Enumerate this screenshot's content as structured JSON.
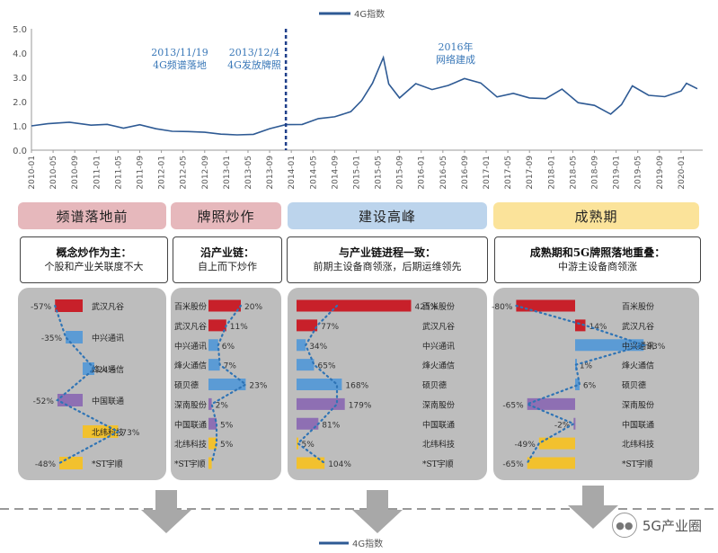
{
  "chart_data": [
    {
      "type": "line",
      "legend": "4G指数",
      "ylim": [
        0,
        5
      ],
      "yticks": [
        "0.0",
        "1.0",
        "2.0",
        "3.0",
        "4.0",
        "5.0"
      ],
      "xticks": [
        "2010-01",
        "2010-05",
        "2010-09",
        "2011-01",
        "2011-05",
        "2011-09",
        "2012-01",
        "2012-05",
        "2012-09",
        "2013-01",
        "2013-05",
        "2013-09",
        "2014-01",
        "2014-05",
        "2014-09",
        "2015-01",
        "2015-05",
        "2015-09",
        "2016-01",
        "2016-05",
        "2016-09",
        "2017-01",
        "2017-05",
        "2017-09",
        "2018-01",
        "2018-05",
        "2018-09",
        "2019-01",
        "2019-05",
        "2019-09",
        "2020-01"
      ],
      "series": [
        {
          "name": "4G指数",
          "x": [
            "2010-01",
            "2010-04",
            "2010-08",
            "2010-12",
            "2011-03",
            "2011-06",
            "2011-09",
            "2011-12",
            "2012-03",
            "2012-06",
            "2012-09",
            "2012-12",
            "2013-03",
            "2013-06",
            "2013-09",
            "2013-12",
            "2014-03",
            "2014-06",
            "2014-09",
            "2014-12",
            "2015-02",
            "2015-04",
            "2015-06",
            "2015-07",
            "2015-09",
            "2015-12",
            "2016-03",
            "2016-06",
            "2016-09",
            "2016-12",
            "2017-03",
            "2017-06",
            "2017-09",
            "2017-12",
            "2018-03",
            "2018-06",
            "2018-09",
            "2018-12",
            "2019-02",
            "2019-04",
            "2019-07",
            "2019-10",
            "2020-01",
            "2020-02",
            "2020-04"
          ],
          "values": [
            1.0,
            1.05,
            1.2,
            1.0,
            1.05,
            0.95,
            1.0,
            0.9,
            0.8,
            0.72,
            0.78,
            0.65,
            0.6,
            0.7,
            0.85,
            1.05,
            1.1,
            1.25,
            1.4,
            1.6,
            2.0,
            2.8,
            3.8,
            2.7,
            2.2,
            2.7,
            2.5,
            2.7,
            2.9,
            2.8,
            2.2,
            2.3,
            2.2,
            2.1,
            2.5,
            2.0,
            1.8,
            1.5,
            1.9,
            2.6,
            2.3,
            2.2,
            2.4,
            2.8,
            2.5
          ]
        }
      ],
      "annotations": [
        {
          "date": "2013-11",
          "lines": [
            "2013/11/19",
            "4G频谱落地"
          ]
        },
        {
          "date": "2013-12",
          "lines": [
            "2013/12/4",
            "4G发放牌照"
          ]
        },
        {
          "date": "2016-04",
          "lines": [
            "2016年",
            "网络建成"
          ]
        }
      ]
    },
    {
      "type": "bar",
      "panel": "频谱落地前",
      "categories": [
        "武汉凡谷",
        "中兴通讯",
        "烽火通信",
        "中国联通",
        "北纬科技",
        "*ST宇顺"
      ],
      "values": [
        -57,
        -35,
        24,
        -52,
        73,
        -48
      ],
      "labels": [
        "-57%",
        "-35%",
        "24%",
        "-52%",
        "73%",
        "-48%"
      ]
    },
    {
      "type": "bar",
      "panel": "牌照炒作",
      "categories": [
        "百米股份",
        "武汉凡谷",
        "中兴通讯",
        "烽火通信",
        "硕贝德",
        "深南股份",
        "中国联通",
        "北纬科技",
        "*ST宇顺"
      ],
      "values": [
        20,
        11,
        6,
        7,
        23,
        2,
        5,
        5,
        2
      ],
      "labels": [
        "20%",
        "11%",
        "6%",
        "7%",
        "23%",
        "2%",
        "5%",
        "5%",
        ""
      ]
    },
    {
      "type": "bar",
      "panel": "建设高峰",
      "categories": [
        "百米股份",
        "武汉凡谷",
        "中兴通讯",
        "烽火通信",
        "硕贝德",
        "深南股份",
        "中国联通",
        "北纬科技",
        "*ST宇顺"
      ],
      "values": [
        425,
        77,
        34,
        65,
        168,
        179,
        81,
        5,
        104
      ],
      "labels": [
        "425%",
        "77%",
        "34%",
        "65%",
        "168%",
        "179%",
        "81%",
        "5%",
        "104%"
      ]
    },
    {
      "type": "bar",
      "panel": "成熟期",
      "categories": [
        "百米股份",
        "武汉凡谷",
        "中兴通讯",
        "烽火通信",
        "硕贝德",
        "深南股份",
        "中国联通",
        "北纬科技",
        "*ST宇顺"
      ],
      "values": [
        -80,
        14,
        93,
        1,
        6,
        -65,
        -2,
        -49,
        -65
      ],
      "labels": [
        "-80%",
        "14%",
        "93%",
        "1%",
        "6%",
        "-65%",
        "-2%",
        "-49%",
        "-65%"
      ]
    }
  ],
  "phases": [
    {
      "title": "频谱落地前",
      "desc_title": "概念炒作为主：",
      "desc_sub": "个股和产业关联度不大",
      "color": "#e6b8bc"
    },
    {
      "title": "牌照炒作",
      "desc_title": "沿产业链：",
      "desc_sub": "自上而下炒作",
      "color": "#e6b8bc"
    },
    {
      "title": "建设高峰",
      "desc_title": "与产业链进程一致：",
      "desc_sub": "前期主设备商领涨，后期运维领先",
      "color": "#bcd4ec"
    },
    {
      "title": "成熟期",
      "desc_title": "成熟期和5G牌照落地重叠：",
      "desc_sub": "中游主设备商领涨",
      "color": "#fbe39a"
    }
  ],
  "colors": {
    "line": "#2e5a94",
    "dashed": "#1f3f8a",
    "annot": "#3a78b8",
    "red": "#c8202a",
    "blue": "#5b9bd5",
    "purple": "#8e6fb3",
    "gold": "#f2c12e",
    "dots": "#2f74b5",
    "panel": "#bdbdbd",
    "arrow": "#a8a8a8"
  },
  "watermark": "5G产业圈"
}
